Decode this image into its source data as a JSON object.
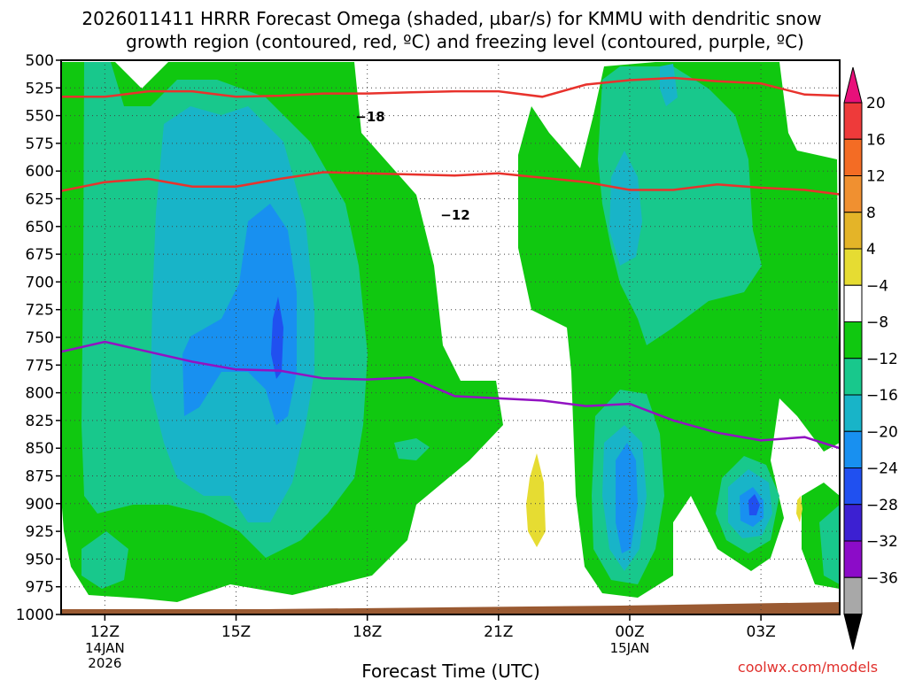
{
  "title_line1": "2026011411 HRRR Forecast Omega (shaded, µbar/s) for KMMU with dendritic snow",
  "title_line2": "growth region (contoured, red, ºC) and freezing level (contoured, purple, ºC)",
  "credit": "coolwx.com/models",
  "chart_data": {
    "type": "contour",
    "xlabel": "Forecast Time (UTC)",
    "ylabel": "",
    "x_range_hours": [
      11,
      28.8
    ],
    "y_range_mb": [
      500,
      1000
    ],
    "y_scale": "reversed",
    "y_ticks": [
      "500",
      "525",
      "550",
      "575",
      "600",
      "625",
      "650",
      "675",
      "700",
      "725",
      "750",
      "775",
      "800",
      "825",
      "850",
      "875",
      "900",
      "925",
      "950",
      "975",
      "1000"
    ],
    "x_ticks": [
      {
        "hour": 12,
        "label": "12Z",
        "sub1": "14JAN",
        "sub2": "2026"
      },
      {
        "hour": 15,
        "label": "15Z",
        "sub1": "",
        "sub2": ""
      },
      {
        "hour": 18,
        "label": "18Z",
        "sub1": "",
        "sub2": ""
      },
      {
        "hour": 21,
        "label": "21Z",
        "sub1": "",
        "sub2": ""
      },
      {
        "hour": 24,
        "label": "00Z",
        "sub1": "15JAN",
        "sub2": ""
      },
      {
        "hour": 27,
        "label": "03Z",
        "sub1": "",
        "sub2": ""
      }
    ],
    "grid": true,
    "colorbar": {
      "labels": [
        "20",
        "16",
        "12",
        "8",
        "4",
        "−4",
        "−8",
        "−12",
        "−16",
        "−20",
        "−24",
        "−28",
        "−32",
        "−36"
      ],
      "colors": [
        "#e8107a",
        "#ee3a3a",
        "#f46c24",
        "#f09030",
        "#e4b428",
        "#e6dc32",
        "#ffffff",
        "#10c810",
        "#18c88c",
        "#18b4c8",
        "#1890f0",
        "#2050f0",
        "#3c20d2",
        "#8c0cc8",
        "#a8a8a8",
        "#000000"
      ]
    },
    "contour_labels": [
      {
        "text": "−18",
        "color": "#e8322c"
      },
      {
        "text": "−12",
        "color": "#e8322c"
      }
    ],
    "series": [
      {
        "name": "−18",
        "color": "#e8322c",
        "points": [
          [
            11,
            533
          ],
          [
            12,
            533
          ],
          [
            13,
            528
          ],
          [
            14,
            528
          ],
          [
            15,
            533
          ],
          [
            16,
            532
          ],
          [
            17,
            530
          ],
          [
            18,
            530
          ],
          [
            19,
            529
          ],
          [
            20,
            528
          ],
          [
            21,
            528
          ],
          [
            22,
            533
          ],
          [
            23,
            522
          ],
          [
            24,
            518
          ],
          [
            25,
            516
          ],
          [
            26,
            519
          ],
          [
            27,
            521
          ],
          [
            28,
            531
          ],
          [
            28.8,
            532
          ]
        ]
      },
      {
        "name": "−12",
        "color": "#e8322c",
        "points": [
          [
            11,
            618
          ],
          [
            12,
            610
          ],
          [
            13,
            607
          ],
          [
            14,
            614
          ],
          [
            15,
            614
          ],
          [
            16,
            607
          ],
          [
            17,
            601
          ],
          [
            18,
            602
          ],
          [
            19,
            603
          ],
          [
            20,
            604
          ],
          [
            21,
            602
          ],
          [
            22,
            606
          ],
          [
            23,
            610
          ],
          [
            24,
            617
          ],
          [
            25,
            617
          ],
          [
            26,
            612
          ],
          [
            27,
            615
          ],
          [
            28,
            617
          ],
          [
            28.8,
            621
          ]
        ]
      },
      {
        "name": "freezing level",
        "color": "#9212c2",
        "points": [
          [
            11,
            763
          ],
          [
            12,
            754
          ],
          [
            13,
            763
          ],
          [
            14,
            772
          ],
          [
            15,
            779
          ],
          [
            16,
            780
          ],
          [
            17,
            787
          ],
          [
            18,
            788
          ],
          [
            19,
            786
          ],
          [
            20,
            803
          ],
          [
            21,
            805
          ],
          [
            22,
            807
          ],
          [
            23,
            812
          ],
          [
            24,
            810
          ],
          [
            25,
            825
          ],
          [
            26,
            836
          ],
          [
            27,
            843
          ],
          [
            28,
            840
          ],
          [
            28.8,
            850
          ]
        ]
      }
    ]
  }
}
